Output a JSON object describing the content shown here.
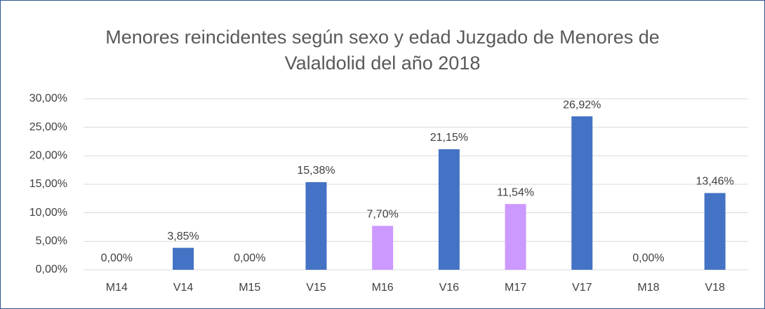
{
  "chart_data": {
    "type": "bar",
    "title": "Menores reincidentes según sexo y edad Juzgado de Menores de Valaldolid del año 2018",
    "categories": [
      "M14",
      "V14",
      "M15",
      "V15",
      "M16",
      "V16",
      "M17",
      "V17",
      "M18",
      "V18"
    ],
    "values": [
      0,
      3.85,
      0,
      15.38,
      7.7,
      21.15,
      11.54,
      26.92,
      0,
      13.46
    ],
    "value_labels": [
      "0,00%",
      "3,85%",
      "0,00%",
      "15,38%",
      "7,70%",
      "21,15%",
      "11,54%",
      "26,92%",
      "0,00%",
      "13,46%"
    ],
    "colors": [
      "#cc99ff",
      "#4472c4",
      "#cc99ff",
      "#4472c4",
      "#cc99ff",
      "#4472c4",
      "#cc99ff",
      "#4472c4",
      "#cc99ff",
      "#4472c4"
    ],
    "ylim": [
      0,
      30
    ],
    "yticks": [
      {
        "value": 0,
        "label": "0,00%"
      },
      {
        "value": 5,
        "label": "5,00%"
      },
      {
        "value": 10,
        "label": "10,00%"
      },
      {
        "value": 15,
        "label": "15,00%"
      },
      {
        "value": 20,
        "label": "20,00%"
      },
      {
        "value": 25,
        "label": "25,00%"
      },
      {
        "value": 30,
        "label": "30,00%"
      }
    ],
    "grid": true
  }
}
